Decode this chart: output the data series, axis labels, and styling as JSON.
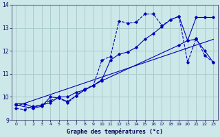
{
  "xlabel": "Graphe des températures (°c)",
  "background_color": "#cce8e8",
  "grid_color": "#aacccc",
  "line_color": "#0000bb",
  "xlim": [
    -0.5,
    23.5
  ],
  "ylim": [
    9.0,
    14.0
  ],
  "yticks": [
    9,
    10,
    11,
    12,
    13,
    14
  ],
  "xticks": [
    0,
    1,
    2,
    3,
    4,
    5,
    6,
    7,
    8,
    9,
    10,
    11,
    12,
    13,
    14,
    15,
    16,
    17,
    18,
    19,
    20,
    21,
    22,
    23
  ],
  "line1_x": [
    0,
    1,
    2,
    3,
    4,
    5,
    6,
    7,
    8,
    9,
    10,
    11,
    12,
    13,
    14,
    15,
    16,
    17,
    18,
    19,
    20,
    21,
    22,
    23
  ],
  "line1_y": [
    9.7,
    9.7,
    9.55,
    9.65,
    9.75,
    10.0,
    10.0,
    10.2,
    10.3,
    10.5,
    10.75,
    11.6,
    11.85,
    11.95,
    12.15,
    12.5,
    12.75,
    13.05,
    13.35,
    13.5,
    12.45,
    13.45,
    13.45,
    13.45
  ],
  "line2_x": [
    0,
    1,
    2,
    3,
    4,
    5,
    6,
    7,
    8,
    9,
    10,
    11,
    12,
    13,
    14,
    15,
    16,
    17,
    18,
    19,
    20,
    21,
    22,
    23
  ],
  "line2_y": [
    9.5,
    9.45,
    9.6,
    9.65,
    9.85,
    9.95,
    9.75,
    10.05,
    10.35,
    10.5,
    11.6,
    11.75,
    13.3,
    13.2,
    13.25,
    13.6,
    13.6,
    13.1,
    13.35,
    13.5,
    11.5,
    12.55,
    11.8,
    11.5
  ],
  "line3_x": [
    0,
    2,
    3,
    4,
    5,
    6,
    7,
    8,
    9,
    10,
    19,
    20,
    21,
    22,
    23
  ],
  "line3_y": [
    9.65,
    9.5,
    9.6,
    10.0,
    9.95,
    9.8,
    10.05,
    10.3,
    10.5,
    10.7,
    12.25,
    12.45,
    12.5,
    12.0,
    11.5
  ],
  "line4_x": [
    0,
    23
  ],
  "line4_y": [
    9.6,
    12.5
  ]
}
